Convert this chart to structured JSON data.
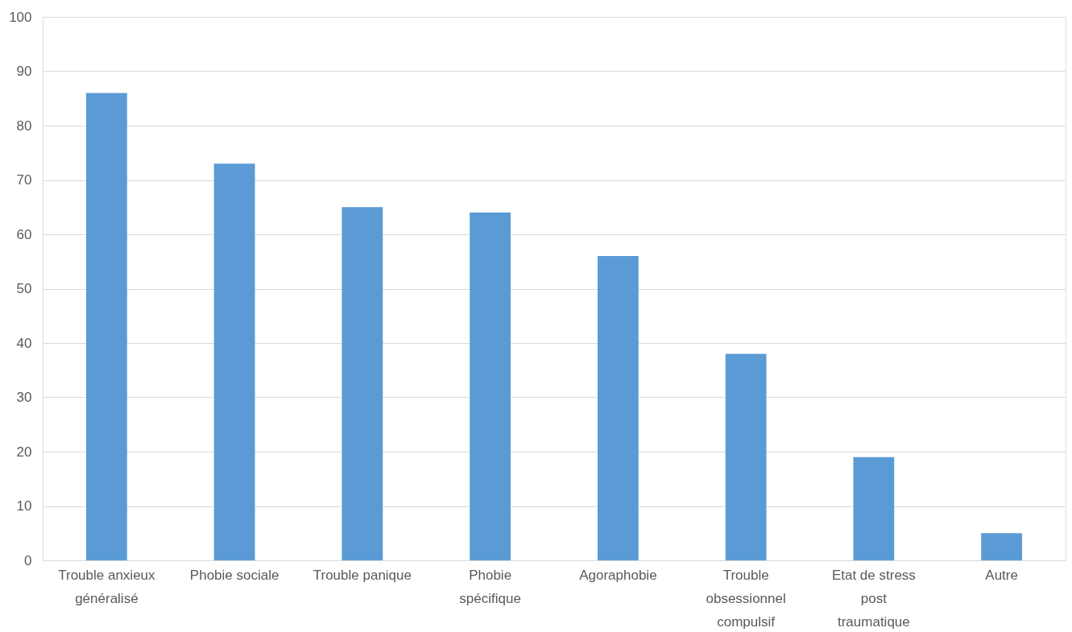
{
  "chart_data": {
    "type": "bar",
    "categories": [
      "Trouble anxieux généralisé",
      "Phobie sociale",
      "Trouble panique",
      "Phobie spécifique",
      "Agoraphobie",
      "Trouble obsessionnel compulsif",
      "Etat de stress post traumatique",
      "Autre"
    ],
    "values": [
      86,
      73,
      65,
      64,
      56,
      38,
      19,
      5
    ],
    "color": "#5b9bd5",
    "ylim": [
      0,
      100
    ],
    "yticks": [
      0,
      10,
      20,
      30,
      40,
      50,
      60,
      70,
      80,
      90,
      100
    ],
    "grid": "y"
  }
}
